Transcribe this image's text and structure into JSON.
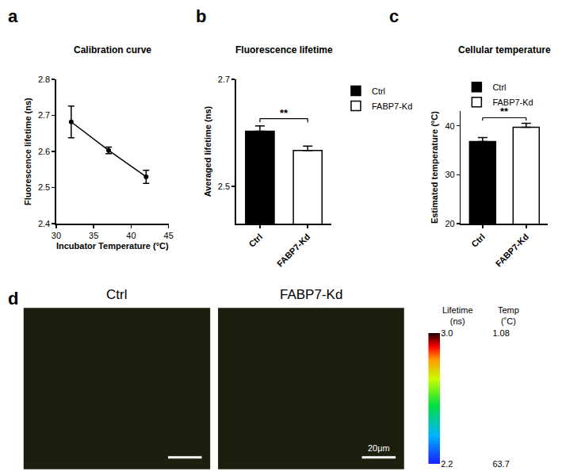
{
  "panel_labels": [
    "a",
    "b",
    "c",
    "d"
  ],
  "chart_data": [
    {
      "type": "line",
      "title": "Calibration curve",
      "x_label": "Incubator Temperature (°C)",
      "y_label": "Fluorescence lifetime (ns)",
      "x": [
        32,
        37,
        42
      ],
      "values": [
        2.682,
        2.603,
        2.53
      ],
      "errors": [
        0.044,
        0.009,
        0.018
      ],
      "color": "#000000",
      "marker": "circle",
      "line_style": "solid",
      "xlim": [
        30,
        45
      ],
      "xticks": [
        30,
        35,
        40,
        45
      ],
      "ylim": [
        2.4,
        2.8
      ],
      "yticks": [
        2.4,
        2.5,
        2.6,
        2.7,
        2.8
      ],
      "grid": false
    },
    {
      "type": "bar",
      "title": "Fluorescence lifetime",
      "y_label": "Averaged lifetime (ns)",
      "categories": [
        "Ctrl",
        "FABP7-Kd"
      ],
      "series": [
        {
          "name": "Ctrl",
          "color": "#000000",
          "values": [
            2.603,
            null
          ],
          "errors": [
            0.01,
            null
          ]
        },
        {
          "name": "FABP7-Kd",
          "color": "#ffffff",
          "values": [
            null,
            2.567
          ],
          "errors": [
            null,
            0.008
          ]
        }
      ],
      "ylim": [
        2.43,
        2.7
      ],
      "yticks": [
        2.5,
        2.7
      ],
      "grid": false,
      "legend": "right",
      "annotations": [
        {
          "text": "**",
          "between": [
            "Ctrl",
            "FABP7-Kd"
          ]
        }
      ]
    },
    {
      "type": "bar",
      "title": "Cellular temperature",
      "y_label": "Estimated temperature (°C)",
      "categories": [
        "Ctrl",
        "FABP7-Kd"
      ],
      "series": [
        {
          "name": "Ctrl",
          "color": "#000000",
          "values": [
            36.8,
            null
          ],
          "errors": [
            0.8,
            null
          ]
        },
        {
          "name": "FABP7-Kd",
          "color": "#ffffff",
          "values": [
            null,
            39.7
          ],
          "errors": [
            null,
            0.8
          ]
        }
      ],
      "ylim": [
        20,
        43
      ],
      "yticks": [
        20,
        30,
        40
      ],
      "grid": false,
      "legend": "top",
      "annotations": [
        {
          "text": "**",
          "between": [
            "Ctrl",
            "FABP7-Kd"
          ]
        }
      ]
    }
  ],
  "panel_d": {
    "images": [
      "Ctrl",
      "FABP7-Kd"
    ],
    "scale_bar": "20μm",
    "color_bar": {
      "lifetime_title": "Lifetime (ns)",
      "temp_title": "Temp (˚C)",
      "lifetime_lim": [
        2.2,
        3.0
      ],
      "lifetime_ticks": [
        {
          "value": 3,
          "label": "3.0"
        },
        2.2
      ],
      "temp_lim": [
        63.7,
        1.08
      ],
      "temp_ticks": [
        1.08,
        63.7
      ]
    }
  }
}
